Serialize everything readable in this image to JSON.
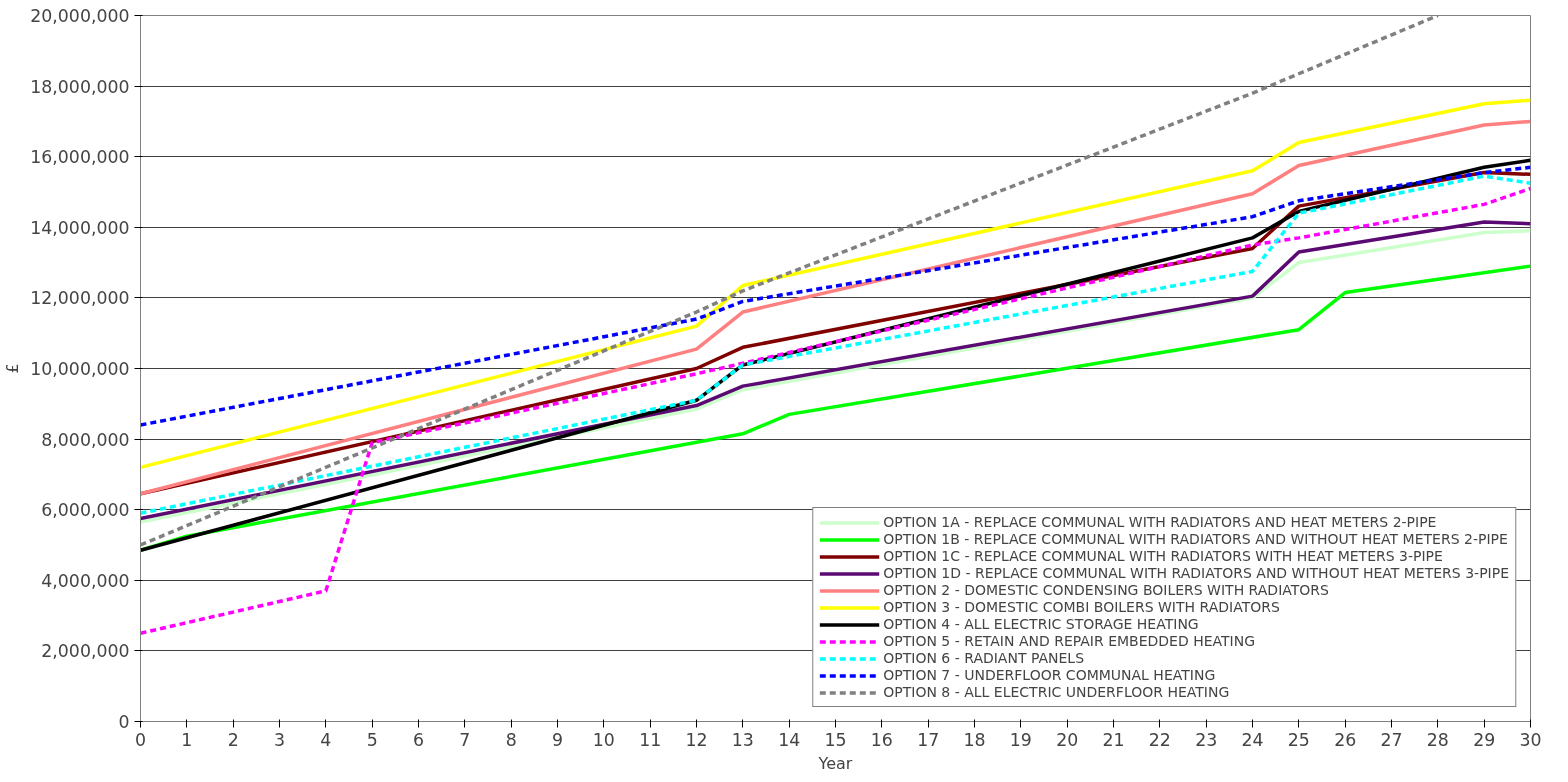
{
  "chart_data": {
    "type": "line",
    "xlabel": "Year",
    "ylabel": "£",
    "xlim": [
      0,
      30
    ],
    "ylim": [
      0,
      20000000
    ],
    "xticks": [
      0,
      1,
      2,
      3,
      4,
      5,
      6,
      7,
      8,
      9,
      10,
      11,
      12,
      13,
      14,
      15,
      16,
      17,
      18,
      19,
      20,
      21,
      22,
      23,
      24,
      25,
      26,
      27,
      28,
      29,
      30
    ],
    "yticks": [
      {
        "value": 0,
        "label": "0"
      },
      {
        "value": 2000000,
        "label": "2,000,000"
      },
      {
        "value": 4000000,
        "label": "4,000,000"
      },
      {
        "value": 6000000,
        "label": "6,000,000"
      },
      {
        "value": 8000000,
        "label": "8,000,000"
      },
      {
        "value": 10000000,
        "label": "10,000,000"
      },
      {
        "value": 12000000,
        "label": "12,000,000"
      },
      {
        "value": 14000000,
        "label": "14,000,000"
      },
      {
        "value": 16000000,
        "label": "16,000,000"
      },
      {
        "value": 18000000,
        "label": "18,000,000"
      },
      {
        "value": 20000000,
        "label": "20,000,000"
      }
    ],
    "grid": "y",
    "legend": "bottom right",
    "marker": "none",
    "series": [
      {
        "name": "OPTION 1A - REPLACE COMMUNAL WITH RADIATORS AND HEAT METERS 2-PIPE",
        "color": "#ccffcc",
        "line_style": "solid",
        "x": [
          0,
          12,
          13,
          24,
          25,
          29,
          30
        ],
        "values": [
          5650000,
          8850000,
          9400000,
          12000000,
          13000000,
          13850000,
          13900000
        ]
      },
      {
        "name": "OPTION 1B - REPLACE COMMUNAL WITH RADIATORS AND WITHOUT HEAT METERS 2-PIPE",
        "color": "#00ff00",
        "line_style": "solid",
        "x": [
          0,
          1,
          13,
          14,
          25,
          26,
          30
        ],
        "values": [
          4850000,
          5250000,
          8150000,
          8700000,
          11100000,
          12150000,
          12900000
        ]
      },
      {
        "name": "OPTION 1C - REPLACE COMMUNAL WITH RADIATORS WITH HEAT METERS 3-PIPE",
        "color": "#800000",
        "line_style": "solid",
        "x": [
          0,
          12,
          13,
          24,
          25,
          29,
          30
        ],
        "values": [
          6450000,
          10000000,
          10600000,
          13400000,
          14600000,
          15550000,
          15500000
        ]
      },
      {
        "name": "OPTION 1D - REPLACE COMMUNAL WITH RADIATORS AND WITHOUT HEAT METERS 3-PIPE",
        "color": "#5c0a73",
        "line_style": "solid",
        "x": [
          0,
          12,
          13,
          24,
          25,
          29,
          30
        ],
        "values": [
          5750000,
          8950000,
          9500000,
          12050000,
          13300000,
          14150000,
          14100000
        ]
      },
      {
        "name": "OPTION 2 - DOMESTIC CONDENSING BOILERS WITH RADIATORS",
        "color": "#ff8080",
        "line_style": "solid",
        "x": [
          0,
          12,
          13,
          24,
          25,
          29,
          30
        ],
        "values": [
          6450000,
          10550000,
          11600000,
          14950000,
          15750000,
          16900000,
          17000000
        ]
      },
      {
        "name": "OPTION 3 - DOMESTIC COMBI BOILERS WITH RADIATORS",
        "color": "#ffff00",
        "line_style": "solid",
        "x": [
          0,
          12,
          13,
          24,
          25,
          29,
          30
        ],
        "values": [
          7200000,
          11200000,
          12350000,
          15600000,
          16400000,
          17500000,
          17600000
        ]
      },
      {
        "name": "OPTION 4 - ALL ELECTRIC STORAGE HEATING",
        "color": "#000000",
        "line_style": "solid",
        "x": [
          0,
          12,
          13,
          24,
          25,
          29,
          30
        ],
        "values": [
          4850000,
          9100000,
          10100000,
          13700000,
          14450000,
          15700000,
          15900000
        ]
      },
      {
        "name": "OPTION 5 - RETAIN AND REPAIR EMBEDDED HEATING",
        "color": "#ff00ff",
        "line_style": "dashed",
        "x": [
          0,
          4,
          5,
          12,
          13,
          24,
          25,
          29,
          30
        ],
        "values": [
          2500000,
          3700000,
          7900000,
          9850000,
          10150000,
          13500000,
          13700000,
          14650000,
          15100000
        ]
      },
      {
        "name": "OPTION 6 - RADIANT PANELS",
        "color": "#00ffff",
        "line_style": "dashed",
        "x": [
          0,
          12,
          13,
          24,
          25,
          29,
          30
        ],
        "values": [
          5900000,
          9100000,
          10100000,
          12750000,
          14400000,
          15450000,
          15250000
        ]
      },
      {
        "name": "OPTION 7 - UNDERFLOOR COMMUNAL HEATING",
        "color": "#0000ff",
        "line_style": "dashed",
        "x": [
          0,
          12,
          13,
          24,
          25,
          29,
          30
        ],
        "values": [
          8400000,
          11400000,
          11900000,
          14300000,
          14750000,
          15550000,
          15700000
        ]
      },
      {
        "name": "OPTION 8 - ALL ELECTRIC UNDERFLOOR HEATING",
        "color": "#808080",
        "line_style": "dashed",
        "x": [
          0,
          12,
          13,
          24,
          28
        ],
        "values": [
          5000000,
          11600000,
          12200000,
          17800000,
          20000000
        ]
      }
    ]
  }
}
